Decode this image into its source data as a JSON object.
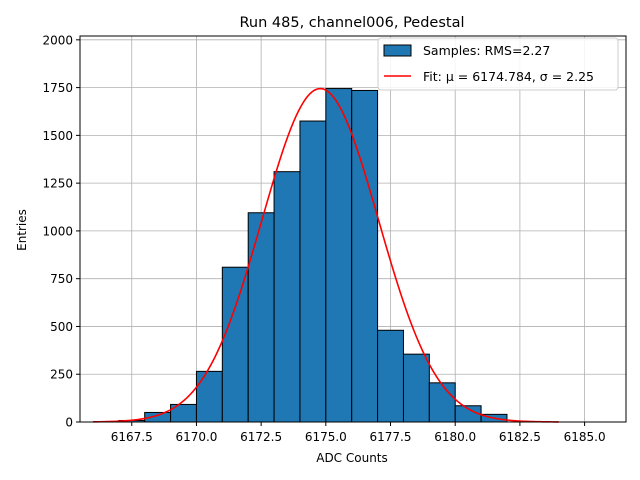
{
  "chart_data": {
    "type": "bar",
    "title": "Run 485, channel006, Pedestal",
    "xlabel": "ADC Counts",
    "ylabel": "Entries",
    "xlim": [
      6165.5,
      6186.6
    ],
    "ylim": [
      0,
      2020
    ],
    "xticks": [
      6167.5,
      6170.0,
      6172.5,
      6175.0,
      6177.5,
      6180.0,
      6182.5,
      6185.0
    ],
    "xtick_labels": [
      "6167.5",
      "6170.0",
      "6172.5",
      "6175.0",
      "6177.5",
      "6180.0",
      "6182.5",
      "6185.0"
    ],
    "yticks": [
      0,
      250,
      500,
      750,
      1000,
      1250,
      1500,
      1750,
      2000
    ],
    "ytick_labels": [
      "0",
      "250",
      "500",
      "750",
      "1000",
      "1250",
      "1500",
      "1750",
      "2000"
    ],
    "grid": true,
    "legend_position": "top-right",
    "legend": [
      {
        "label": "Samples: RMS=2.27",
        "kind": "patch"
      },
      {
        "label": "Fit: μ = 6174.784, σ = 2.25",
        "kind": "line"
      }
    ],
    "histogram": {
      "bin_edges": [
        6167,
        6168,
        6169,
        6170,
        6171,
        6172,
        6173,
        6174,
        6175,
        6176,
        6177,
        6178,
        6179,
        6180,
        6181,
        6182
      ],
      "counts": [
        8,
        50,
        92,
        265,
        810,
        1095,
        1310,
        1575,
        1745,
        1735,
        480,
        355,
        205,
        85,
        40
      ],
      "fill": "#1f77b4",
      "edge": "#000000"
    },
    "fit": {
      "type": "gaussian",
      "mu": 6174.784,
      "sigma": 2.25,
      "peak": 1745,
      "x_range": [
        6166,
        6184
      ],
      "color": "#ff0000"
    }
  }
}
